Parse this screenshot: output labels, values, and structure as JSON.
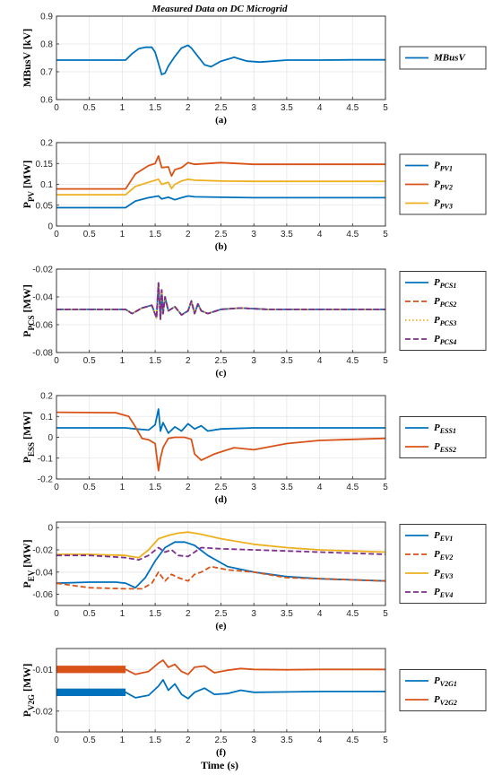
{
  "figure_title": "Measured Data on DC Microgrid",
  "xlabel": "Time (s)",
  "colors": {
    "blue": "#0072bd",
    "orange": "#d95319",
    "yellow": "#edb120",
    "purple": "#7e2f8e"
  },
  "chart_data": [
    {
      "type": "line",
      "caption": "(a)",
      "ylabel": {
        "main": "MBusV [kV]",
        "sub": ""
      },
      "xlim": [
        0,
        5
      ],
      "ylim": [
        0.6,
        0.9
      ],
      "xticks": [
        "0",
        "0.5",
        "1",
        "1.5",
        "2",
        "2.5",
        "3",
        "3.5",
        "4",
        "4.5",
        "5"
      ],
      "yticks": [
        "0.6",
        "0.7",
        "0.8",
        "0.9"
      ],
      "series": [
        {
          "name": "MBusV",
          "legend_main": "MBusV",
          "legend_sub": "",
          "color": "#0072bd",
          "dash": "solid",
          "x": [
            0,
            1.05,
            1.15,
            1.25,
            1.35,
            1.45,
            1.5,
            1.55,
            1.6,
            1.65,
            1.7,
            1.8,
            1.9,
            2.0,
            2.05,
            2.15,
            2.25,
            2.35,
            2.5,
            2.7,
            2.9,
            3.1,
            3.5,
            4,
            4.5,
            5
          ],
          "y": [
            0.742,
            0.742,
            0.765,
            0.783,
            0.788,
            0.788,
            0.77,
            0.73,
            0.69,
            0.695,
            0.72,
            0.755,
            0.785,
            0.795,
            0.785,
            0.755,
            0.725,
            0.718,
            0.738,
            0.752,
            0.738,
            0.735,
            0.742,
            0.742,
            0.743,
            0.743
          ]
        }
      ]
    },
    {
      "type": "line",
      "caption": "(b)",
      "ylabel": {
        "main": "P",
        "sub": "PV",
        "unit": " [MW]"
      },
      "xlim": [
        0,
        5
      ],
      "ylim": [
        0,
        0.2
      ],
      "xticks": [
        "0",
        "0.5",
        "1",
        "1.5",
        "2",
        "2.5",
        "3",
        "3.5",
        "4",
        "4.5",
        "5"
      ],
      "yticks": [
        "0",
        "0.05",
        "0.1",
        "0.15",
        "0.2"
      ],
      "series": [
        {
          "name": "PPV1",
          "legend_main": "P",
          "legend_sub": "PV1",
          "color": "#0072bd",
          "dash": "solid",
          "x": [
            0,
            1.05,
            1.2,
            1.4,
            1.55,
            1.6,
            1.7,
            1.8,
            1.9,
            2.0,
            2.1,
            2.5,
            3,
            5
          ],
          "y": [
            0.044,
            0.044,
            0.06,
            0.068,
            0.072,
            0.065,
            0.069,
            0.063,
            0.068,
            0.072,
            0.07,
            0.069,
            0.068,
            0.068
          ]
        },
        {
          "name": "PPV2",
          "legend_main": "P",
          "legend_sub": "PV2",
          "color": "#d95319",
          "dash": "solid",
          "x": [
            0,
            1.05,
            1.2,
            1.4,
            1.5,
            1.55,
            1.6,
            1.7,
            1.75,
            1.8,
            1.9,
            2.0,
            2.1,
            2.5,
            3,
            5
          ],
          "y": [
            0.089,
            0.089,
            0.125,
            0.145,
            0.15,
            0.168,
            0.14,
            0.142,
            0.12,
            0.135,
            0.14,
            0.152,
            0.148,
            0.152,
            0.148,
            0.148
          ]
        },
        {
          "name": "PPV3",
          "legend_main": "P",
          "legend_sub": "PV3",
          "color": "#edb120",
          "dash": "solid",
          "x": [
            0,
            1.05,
            1.2,
            1.4,
            1.55,
            1.6,
            1.7,
            1.75,
            1.8,
            1.9,
            2.0,
            2.1,
            2.5,
            3,
            5
          ],
          "y": [
            0.075,
            0.075,
            0.095,
            0.105,
            0.112,
            0.1,
            0.105,
            0.09,
            0.1,
            0.108,
            0.112,
            0.11,
            0.108,
            0.107,
            0.107
          ]
        }
      ]
    },
    {
      "type": "line",
      "caption": "(c)",
      "ylabel": {
        "main": "P",
        "sub": "PCS",
        "unit": " [MW]"
      },
      "xlim": [
        0,
        5
      ],
      "ylim": [
        -0.08,
        -0.02
      ],
      "xticks": [
        "0",
        "0.5",
        "1",
        "1.5",
        "2",
        "2.5",
        "3",
        "3.5",
        "4",
        "4.5",
        "5"
      ],
      "yticks": [
        "-0.08",
        "-0.06",
        "-0.04",
        "-0.02"
      ],
      "series": [
        {
          "name": "PPCS1",
          "legend_main": "P",
          "legend_sub": "PCS1",
          "color": "#0072bd",
          "dash": "solid",
          "x": [
            0,
            1.05,
            1.15,
            1.3,
            1.45,
            1.52,
            1.55,
            1.58,
            1.6,
            1.62,
            1.65,
            1.7,
            1.8,
            1.9,
            2.0,
            2.05,
            2.1,
            2.15,
            2.2,
            2.3,
            2.5,
            2.8,
            3.2,
            5
          ],
          "y": [
            -0.049,
            -0.049,
            -0.052,
            -0.048,
            -0.046,
            -0.055,
            -0.03,
            -0.056,
            -0.035,
            -0.052,
            -0.04,
            -0.05,
            -0.047,
            -0.053,
            -0.05,
            -0.043,
            -0.052,
            -0.045,
            -0.05,
            -0.052,
            -0.049,
            -0.048,
            -0.049,
            -0.049
          ]
        },
        {
          "name": "PPCS2",
          "legend_main": "P",
          "legend_sub": "PCS2",
          "color": "#d95319",
          "dash": "dash",
          "x": [
            0,
            1.05,
            1.15,
            1.3,
            1.45,
            1.52,
            1.55,
            1.58,
            1.6,
            1.62,
            1.65,
            1.7,
            1.8,
            1.9,
            2.0,
            2.05,
            2.1,
            2.15,
            2.2,
            2.3,
            2.5,
            2.8,
            3.2,
            5
          ],
          "y": [
            -0.049,
            -0.049,
            -0.052,
            -0.048,
            -0.046,
            -0.055,
            -0.03,
            -0.056,
            -0.035,
            -0.052,
            -0.04,
            -0.05,
            -0.047,
            -0.053,
            -0.05,
            -0.043,
            -0.052,
            -0.045,
            -0.05,
            -0.052,
            -0.049,
            -0.048,
            -0.049,
            -0.049
          ]
        },
        {
          "name": "PPCS3",
          "legend_main": "P",
          "legend_sub": "PCS3",
          "color": "#edb120",
          "dash": "dot",
          "x": [
            0,
            1.05,
            1.15,
            1.3,
            1.45,
            1.52,
            1.55,
            1.58,
            1.6,
            1.62,
            1.65,
            1.7,
            1.8,
            1.9,
            2.0,
            2.05,
            2.1,
            2.15,
            2.2,
            2.3,
            2.5,
            2.8,
            3.2,
            5
          ],
          "y": [
            -0.049,
            -0.049,
            -0.052,
            -0.048,
            -0.046,
            -0.055,
            -0.03,
            -0.056,
            -0.035,
            -0.052,
            -0.04,
            -0.05,
            -0.047,
            -0.053,
            -0.05,
            -0.043,
            -0.052,
            -0.045,
            -0.05,
            -0.052,
            -0.049,
            -0.048,
            -0.049,
            -0.049
          ]
        },
        {
          "name": "PPCS4",
          "legend_main": "P",
          "legend_sub": "PCS4",
          "color": "#7e2f8e",
          "dash": "dash",
          "x": [
            0,
            1.05,
            1.15,
            1.3,
            1.45,
            1.52,
            1.55,
            1.58,
            1.6,
            1.62,
            1.65,
            1.7,
            1.8,
            1.9,
            2.0,
            2.05,
            2.1,
            2.15,
            2.2,
            2.3,
            2.5,
            2.8,
            3.2,
            5
          ],
          "y": [
            -0.049,
            -0.049,
            -0.052,
            -0.048,
            -0.046,
            -0.055,
            -0.03,
            -0.056,
            -0.035,
            -0.052,
            -0.04,
            -0.05,
            -0.047,
            -0.053,
            -0.05,
            -0.043,
            -0.052,
            -0.045,
            -0.05,
            -0.052,
            -0.049,
            -0.048,
            -0.049,
            -0.049
          ]
        }
      ]
    },
    {
      "type": "line",
      "caption": "(d)",
      "ylabel": {
        "main": "P",
        "sub": "ESS",
        "unit": " [MW]"
      },
      "xlim": [
        0,
        5
      ],
      "ylim": [
        -0.2,
        0.2
      ],
      "xticks": [
        "0",
        "0.5",
        "1",
        "1.5",
        "2",
        "2.5",
        "3",
        "3.5",
        "4",
        "4.5",
        "5"
      ],
      "yticks": [
        "-0.2",
        "-0.1",
        "0",
        "0.1",
        "0.2"
      ],
      "series": [
        {
          "name": "PESS1",
          "legend_main": "P",
          "legend_sub": "ESS1",
          "color": "#0072bd",
          "dash": "solid",
          "x": [
            0,
            1.05,
            1.2,
            1.4,
            1.5,
            1.55,
            1.58,
            1.62,
            1.7,
            1.8,
            1.9,
            2.0,
            2.1,
            2.2,
            2.3,
            2.5,
            3,
            5
          ],
          "y": [
            0.045,
            0.045,
            0.04,
            0.035,
            0.06,
            0.135,
            0.03,
            0.07,
            0.02,
            0.05,
            0.03,
            0.065,
            0.04,
            0.055,
            0.03,
            0.04,
            0.045,
            0.045
          ]
        },
        {
          "name": "PESS2",
          "legend_main": "P",
          "legend_sub": "ESS2",
          "color": "#d95319",
          "dash": "solid",
          "x": [
            0,
            0.9,
            1.1,
            1.2,
            1.3,
            1.4,
            1.5,
            1.55,
            1.58,
            1.62,
            1.7,
            1.8,
            1.95,
            2.05,
            2.1,
            2.2,
            2.4,
            2.7,
            3,
            3.5,
            4,
            4.5,
            5
          ],
          "y": [
            0.12,
            0.118,
            0.1,
            0.05,
            -0.005,
            -0.012,
            -0.03,
            -0.16,
            -0.1,
            -0.05,
            -0.005,
            0,
            0,
            -0.01,
            -0.08,
            -0.11,
            -0.08,
            -0.05,
            -0.06,
            -0.03,
            -0.015,
            -0.01,
            -0.005
          ]
        }
      ]
    },
    {
      "type": "line",
      "caption": "(e)",
      "ylabel": {
        "main": "P",
        "sub": "EV",
        "unit": " [MW]"
      },
      "xlim": [
        0,
        5
      ],
      "ylim": [
        -0.07,
        0.005
      ],
      "xticks": [
        "0",
        "0.5",
        "1",
        "1.5",
        "2",
        "2.5",
        "3",
        "3.5",
        "4",
        "4.5",
        "5"
      ],
      "yticks": [
        "-0.06",
        "-0.04",
        "-0.02",
        "0"
      ],
      "series": [
        {
          "name": "PEV1",
          "legend_main": "P",
          "legend_sub": "EV1",
          "color": "#0072bd",
          "dash": "solid",
          "x": [
            0,
            0.5,
            0.9,
            1.05,
            1.2,
            1.35,
            1.5,
            1.65,
            1.8,
            1.95,
            2.1,
            2.3,
            2.6,
            3,
            3.5,
            4,
            5
          ],
          "y": [
            -0.05,
            -0.049,
            -0.049,
            -0.05,
            -0.054,
            -0.045,
            -0.03,
            -0.018,
            -0.013,
            -0.013,
            -0.016,
            -0.025,
            -0.035,
            -0.04,
            -0.044,
            -0.046,
            -0.048
          ]
        },
        {
          "name": "PEV2",
          "legend_main": "P",
          "legend_sub": "EV2",
          "color": "#d95319",
          "dash": "dash",
          "x": [
            0,
            0.5,
            1.05,
            1.3,
            1.45,
            1.55,
            1.65,
            1.75,
            1.85,
            2.0,
            2.1,
            2.2,
            2.35,
            2.6,
            3,
            3.5,
            4,
            5
          ],
          "y": [
            -0.05,
            -0.054,
            -0.055,
            -0.055,
            -0.05,
            -0.04,
            -0.048,
            -0.042,
            -0.045,
            -0.048,
            -0.042,
            -0.04,
            -0.035,
            -0.038,
            -0.04,
            -0.045,
            -0.046,
            -0.048
          ]
        },
        {
          "name": "PEV3",
          "legend_main": "P",
          "legend_sub": "EV3",
          "color": "#edb120",
          "dash": "solid",
          "x": [
            0,
            0.5,
            1.05,
            1.25,
            1.4,
            1.55,
            1.7,
            1.85,
            2.0,
            2.2,
            2.5,
            3,
            3.5,
            4,
            5
          ],
          "y": [
            -0.024,
            -0.024,
            -0.025,
            -0.027,
            -0.02,
            -0.01,
            -0.007,
            -0.005,
            -0.004,
            -0.006,
            -0.01,
            -0.015,
            -0.018,
            -0.02,
            -0.022
          ]
        },
        {
          "name": "PEV4",
          "legend_main": "P",
          "legend_sub": "EV4",
          "color": "#7e2f8e",
          "dash": "dash",
          "x": [
            0,
            0.5,
            1.05,
            1.25,
            1.4,
            1.55,
            1.65,
            1.75,
            1.85,
            2.0,
            2.1,
            2.2,
            2.5,
            3,
            4,
            5
          ],
          "y": [
            -0.025,
            -0.025,
            -0.027,
            -0.029,
            -0.025,
            -0.018,
            -0.022,
            -0.02,
            -0.025,
            -0.026,
            -0.022,
            -0.018,
            -0.019,
            -0.02,
            -0.022,
            -0.024
          ]
        }
      ]
    },
    {
      "type": "line",
      "caption": "(f)",
      "ylabel": {
        "main": "P",
        "sub": "V2G",
        "unit": " [MW]"
      },
      "xlim": [
        0,
        5
      ],
      "ylim": [
        -0.025,
        -0.005
      ],
      "xticks": [
        "0",
        "0.5",
        "1",
        "1.5",
        "2",
        "2.5",
        "3",
        "3.5",
        "4",
        "4.5",
        "5"
      ],
      "yticks": [
        "-0.02",
        "-0.01"
      ],
      "series": [
        {
          "name": "PV2G1",
          "legend_main": "P",
          "legend_sub": "V2G1",
          "color": "#0072bd",
          "dash": "solid",
          "band": 0.0009,
          "band_until": 1.05,
          "x": [
            0,
            1.05,
            1.2,
            1.4,
            1.55,
            1.62,
            1.7,
            1.8,
            1.9,
            2.0,
            2.1,
            2.25,
            2.4,
            2.6,
            2.8,
            3,
            3.5,
            4,
            5
          ],
          "y": [
            -0.0155,
            -0.0155,
            -0.0168,
            -0.0162,
            -0.014,
            -0.0125,
            -0.015,
            -0.0135,
            -0.016,
            -0.017,
            -0.0155,
            -0.0145,
            -0.016,
            -0.0158,
            -0.015,
            -0.0155,
            -0.0154,
            -0.0153,
            -0.0153
          ]
        },
        {
          "name": "PV2G2",
          "legend_main": "P",
          "legend_sub": "V2G2",
          "color": "#d95319",
          "dash": "solid",
          "band": 0.0009,
          "band_until": 1.05,
          "x": [
            0,
            1.05,
            1.2,
            1.4,
            1.55,
            1.62,
            1.7,
            1.8,
            1.9,
            2.0,
            2.1,
            2.25,
            2.4,
            2.6,
            2.8,
            3,
            3.5,
            4,
            5
          ],
          "y": [
            -0.01,
            -0.01,
            -0.0112,
            -0.0105,
            -0.0085,
            -0.0078,
            -0.0095,
            -0.0088,
            -0.0105,
            -0.0112,
            -0.0095,
            -0.0092,
            -0.0108,
            -0.0102,
            -0.0098,
            -0.01,
            -0.0101,
            -0.01,
            -0.01
          ]
        }
      ]
    }
  ]
}
